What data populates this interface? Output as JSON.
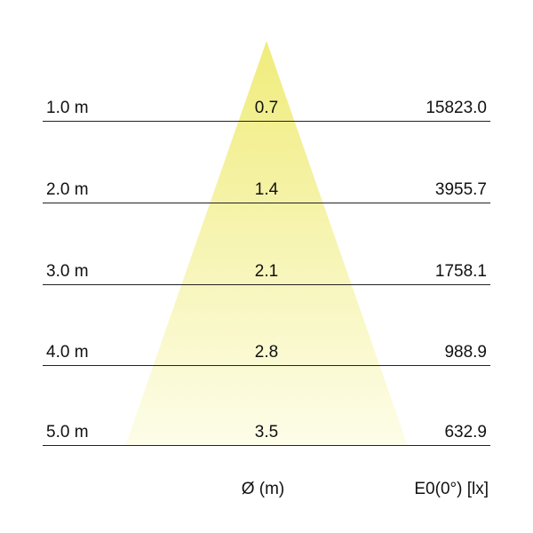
{
  "rows": [
    {
      "distance": "1.0 m",
      "diameter": "0.7",
      "illuminance": "15823.0"
    },
    {
      "distance": "2.0 m",
      "diameter": "1.4",
      "illuminance": "3955.7"
    },
    {
      "distance": "3.0 m",
      "diameter": "2.1",
      "illuminance": "1758.1"
    },
    {
      "distance": "4.0 m",
      "diameter": "2.8",
      "illuminance": "988.9"
    },
    {
      "distance": "5.0 m",
      "diameter": "3.5",
      "illuminance": "632.9"
    }
  ],
  "footer": {
    "diameter_label": "Ø (m)",
    "illuminance_label": "E0(0°) [lx]"
  },
  "colors": {
    "cone_top": "#f0ec7c",
    "cone_bottom": "#fdfde9"
  }
}
